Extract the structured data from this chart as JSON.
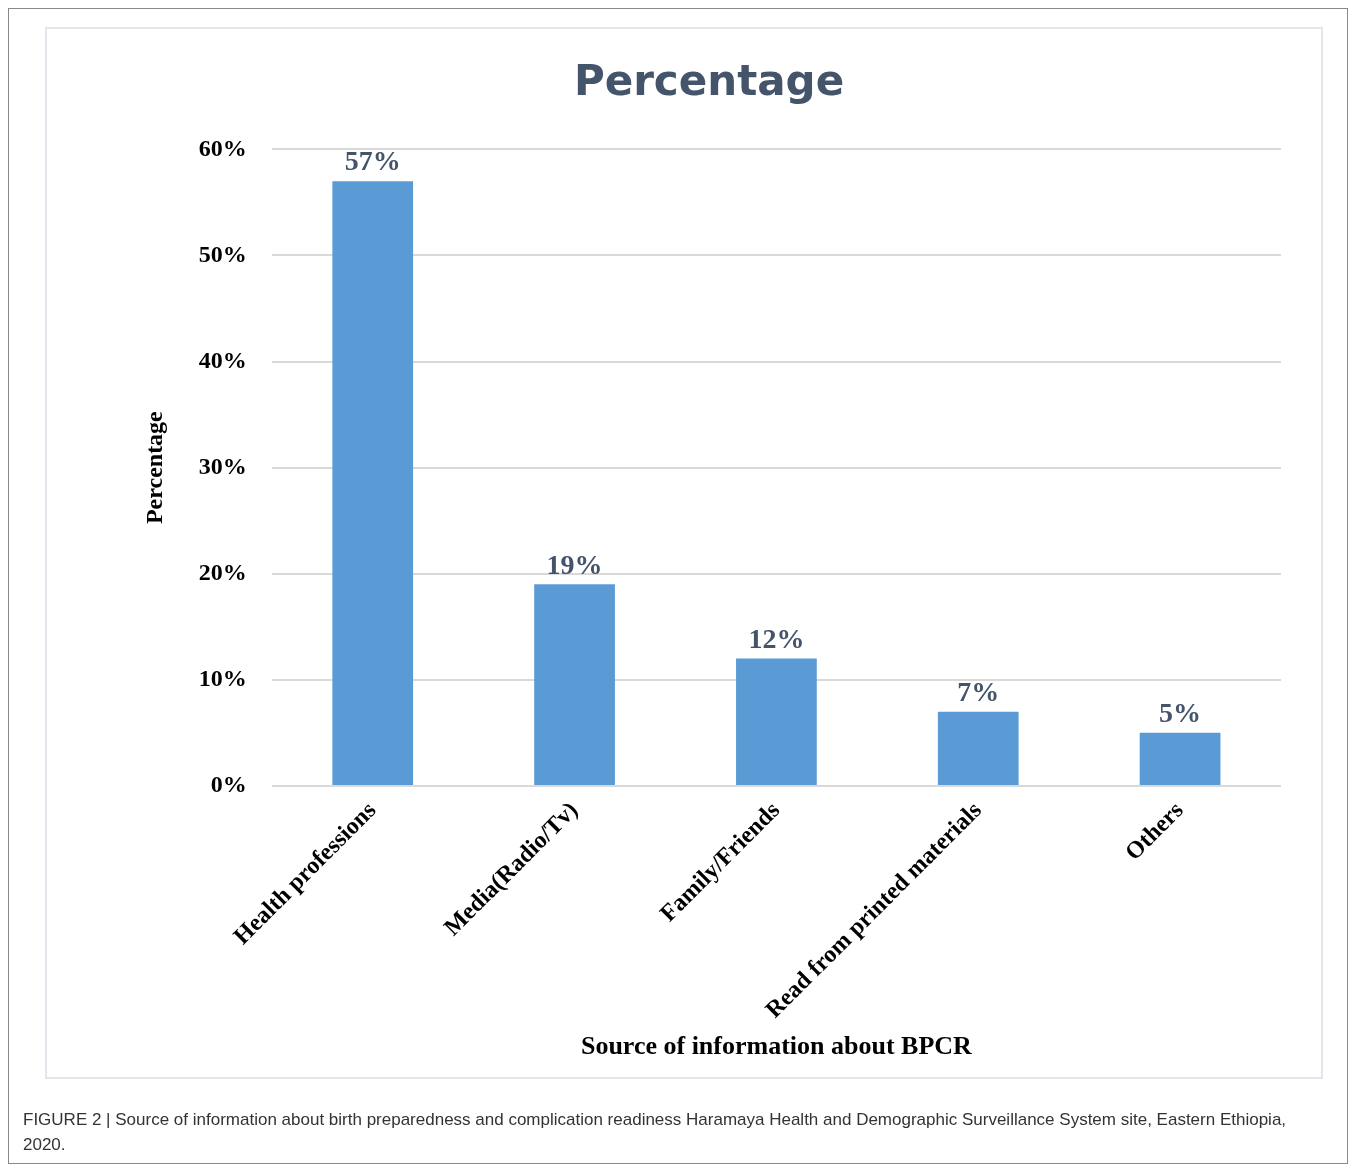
{
  "chart_data": {
    "type": "bar",
    "title": "Percentage",
    "xlabel": "Source of information about BPCR",
    "ylabel": "Percentage",
    "categories": [
      "Health professions",
      "Media(Radio/Tv)",
      "Family/Friends",
      "Read from printed materials",
      "Others"
    ],
    "values": [
      57,
      19,
      12,
      7,
      5
    ],
    "value_labels": [
      "57%",
      "19%",
      "12%",
      "7%",
      "5%"
    ],
    "color": "#5b9bd5",
    "ylim": [
      0,
      60
    ],
    "yticks": [
      {
        "value": 0,
        "label": "0%"
      },
      {
        "value": 10,
        "label": "10%"
      },
      {
        "value": 20,
        "label": "20%"
      },
      {
        "value": 30,
        "label": "30%"
      },
      {
        "value": 40,
        "label": "40%"
      },
      {
        "value": 50,
        "label": "50%"
      },
      {
        "value": 60,
        "label": "60%"
      }
    ],
    "grid": "y",
    "legend": false,
    "annotations": [
      "FIGURE 2 | Source of information about birth preparedness and complication readiness Haramaya Health and Demographic Surveillance System site, Eastern Ethiopia, 2020."
    ]
  }
}
